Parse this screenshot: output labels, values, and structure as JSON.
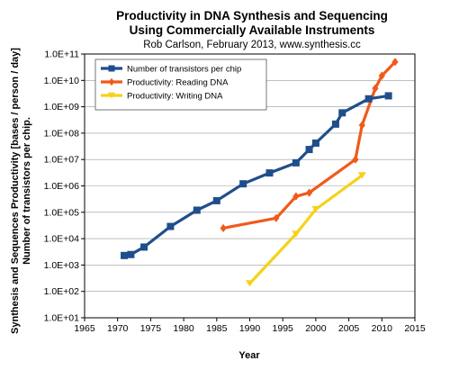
{
  "chart_data": {
    "type": "line",
    "title_lines": [
      "Productivity in DNA Synthesis and Sequencing",
      "Using Commercially Available Instruments"
    ],
    "subtitle": "Rob Carlson, February 2013, www.synthesis.cc",
    "xlabel": "Year",
    "ylabel_lines": [
      "Synthesis and Sequences Productivity [bases / person / day]",
      "Number of transistors per chip."
    ],
    "xlim": [
      1965,
      2015
    ],
    "ylim": [
      10,
      100000000000
    ],
    "yscale": "log",
    "x_ticks": [
      "1965",
      "1970",
      "1975",
      "1980",
      "1985",
      "1990",
      "1995",
      "2000",
      "2005",
      "2010",
      "2015"
    ],
    "y_ticks": [
      "1.0E+01",
      "1.0E+02",
      "1.0E+03",
      "1.0E+04",
      "1.0E+05",
      "1.0E+06",
      "1.0E+07",
      "1.0E+08",
      "1.0E+09",
      "1.0E+10",
      "1.0E+11"
    ],
    "grid": "horizontal",
    "legend_position": "top-left",
    "series": [
      {
        "name": "Number of transistors per chip",
        "color": "#1f4e8c",
        "marker": "square",
        "x": [
          1971,
          1972,
          1974,
          1978,
          1982,
          1985,
          1989,
          1993,
          1997,
          1999,
          2000,
          2003,
          2004,
          2008,
          2011
        ],
        "y": [
          2300,
          2500,
          4800,
          29000,
          120000,
          275000,
          1200000,
          3100000,
          7500000,
          24000000,
          42000000,
          220000000,
          590000000,
          2000000000,
          2600000000
        ]
      },
      {
        "name": "Productivity: Reading DNA",
        "color": "#f05a1a",
        "marker": "diamond",
        "x": [
          1986,
          1994,
          1997,
          1999,
          2006,
          2007,
          2009,
          2010,
          2012
        ],
        "y": [
          25000,
          60000,
          400000,
          550000,
          10000000,
          200000000,
          5000000000,
          15000000000,
          50000000000
        ]
      },
      {
        "name": "Productivity: Writing DNA",
        "color": "#f5d21a",
        "marker": "triangle",
        "x": [
          1990,
          1997,
          2000,
          2007
        ],
        "y": [
          200,
          15000,
          130000,
          2500000
        ]
      }
    ]
  }
}
